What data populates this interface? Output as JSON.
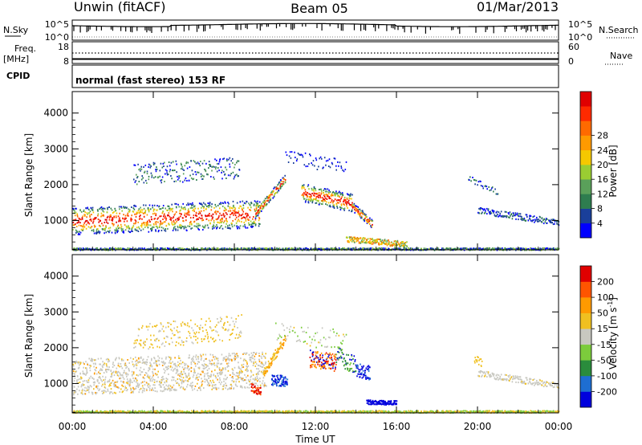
{
  "header": {
    "station": "Unwin (fitACF)",
    "beam": "Beam 05",
    "date": "01/Mar/2013"
  },
  "noise_panel": {
    "left_label": "N.Sky",
    "right_label": "N.Search",
    "left_ticks": [
      "10^5",
      "10^0"
    ],
    "right_ticks": [
      "10^5",
      "10^0"
    ]
  },
  "freq_panel": {
    "left_label_1": "Freq.",
    "left_label_2": "[MHz]",
    "left_ticks": [
      "18",
      "8"
    ],
    "right_label": "Nave",
    "right_ticks": [
      "60",
      "0"
    ]
  },
  "cpid_panel": {
    "label": "CPID",
    "text": "normal (fast stereo) 153 RF"
  },
  "chart_data": [
    {
      "type": "heatmap",
      "name": "power",
      "ylabel": "Slant Range [km]",
      "ylim": [
        180,
        4600
      ],
      "yticks": [
        "1000",
        "2000",
        "3000",
        "4000"
      ],
      "ytick_values": [
        1000,
        2000,
        3000,
        4000
      ],
      "xlim": [
        0,
        24
      ],
      "colorbar_label": "Power [dB]",
      "colorbar_ticks": [
        "4",
        "8",
        "12",
        "16",
        "20",
        "24",
        "28"
      ],
      "colorbar_colors": [
        "#0000ff",
        "#1a3f9a",
        "#2e7d4f",
        "#5aa05a",
        "#9acd32",
        "#f5c800",
        "#ff9a00",
        "#ff6a00",
        "#ff2a00",
        "#e00000"
      ]
    },
    {
      "type": "heatmap",
      "name": "velocity",
      "ylabel": "Slant Range [km]",
      "ylim": [
        180,
        4600
      ],
      "yticks": [
        "1000",
        "2000",
        "3000",
        "4000"
      ],
      "ytick_values": [
        1000,
        2000,
        3000,
        4000
      ],
      "xlim": [
        0,
        24
      ],
      "colorbar_label": "Velocity [m s",
      "colorbar_label_sup": "-1",
      "colorbar_label_end": "]",
      "colorbar_ticks": [
        "200",
        "100",
        "50",
        "15",
        "-15",
        "-50",
        "-100",
        "-200"
      ],
      "colorbar_colors": [
        "#0000dd",
        "#1e6ed2",
        "#2a8c3c",
        "#7ccc3c",
        "#c8c8c0",
        "#f0c020",
        "#ff9a00",
        "#ff5500",
        "#e00000"
      ]
    }
  ],
  "x_axis": {
    "ticks": [
      "00:00",
      "04:00",
      "08:00",
      "12:00",
      "16:00",
      "20:00",
      "00:00"
    ],
    "label": "Time UT"
  }
}
